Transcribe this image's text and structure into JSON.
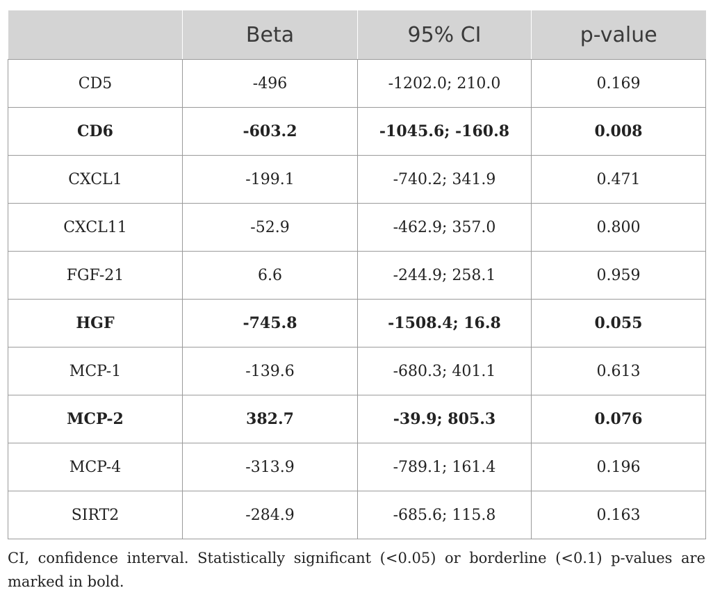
{
  "table": {
    "headers": [
      "",
      "Beta",
      "95% CI",
      "p-value"
    ],
    "rows": [
      {
        "marker": "CD5",
        "beta": "-496",
        "ci": "-1202.0; 210.0",
        "p": "0.169",
        "bold": false
      },
      {
        "marker": "CD6",
        "beta": "-603.2",
        "ci": "-1045.6; -160.8",
        "p": "0.008",
        "bold": true
      },
      {
        "marker": "CXCL1",
        "beta": "-199.1",
        "ci": "-740.2; 341.9",
        "p": "0.471",
        "bold": false
      },
      {
        "marker": "CXCL11",
        "beta": "-52.9",
        "ci": "-462.9; 357.0",
        "p": "0.800",
        "bold": false
      },
      {
        "marker": "FGF-21",
        "beta": "6.6",
        "ci": "-244.9; 258.1",
        "p": "0.959",
        "bold": false
      },
      {
        "marker": "HGF",
        "beta": "-745.8",
        "ci": "-1508.4; 16.8",
        "p": "0.055",
        "bold": true
      },
      {
        "marker": "MCP-1",
        "beta": "-139.6",
        "ci": "-680.3; 401.1",
        "p": "0.613",
        "bold": false
      },
      {
        "marker": "MCP-2",
        "beta": "382.7",
        "ci": "-39.9; 805.3",
        "p": "0.076",
        "bold": true
      },
      {
        "marker": "MCP-4",
        "beta": "-313.9",
        "ci": "-789.1; 161.4",
        "p": "0.196",
        "bold": false
      },
      {
        "marker": "SIRT2",
        "beta": "-284.9",
        "ci": "-685.6; 115.8",
        "p": "0.163",
        "bold": false
      }
    ]
  },
  "footnote": "CI, confidence interval. Statistically significant (<0.05) or borderline (<0.1) p-values are marked in bold."
}
